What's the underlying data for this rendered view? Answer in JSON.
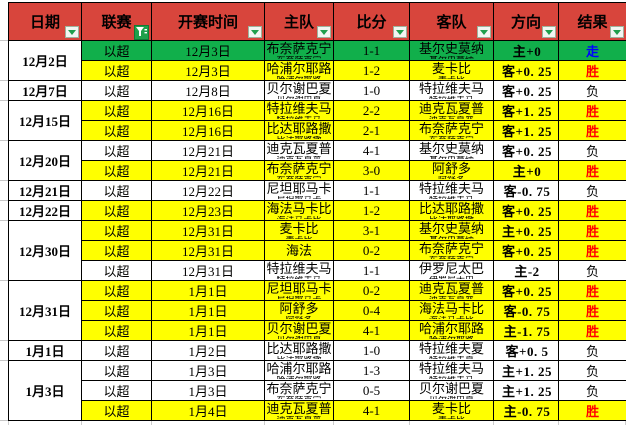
{
  "app": {
    "kind": "spreadsheet-match-table"
  },
  "colors": {
    "header_red": "#d8453c",
    "row_green": "#11af4b",
    "row_yellow": "#ffff00",
    "row_white": "#ffffff",
    "result_win_red": "#ff0000",
    "result_draw_blue": "#0000ff",
    "result_lose_black": "#000000",
    "filter_icon_green": "#1fa04b",
    "grid_black": "#000000"
  },
  "columns": [
    {
      "key": "date",
      "label": "日期",
      "filter": "dropdown"
    },
    {
      "key": "league",
      "label": "联赛",
      "filter": "funnel"
    },
    {
      "key": "time",
      "label": "开赛时间",
      "filter": "dropdown"
    },
    {
      "key": "home",
      "label": "主队",
      "filter": "dropdown"
    },
    {
      "key": "score",
      "label": "比分",
      "filter": "dropdown"
    },
    {
      "key": "away",
      "label": "客队",
      "filter": "dropdown"
    },
    {
      "key": "direction",
      "label": "方向",
      "filter": "dropdown"
    },
    {
      "key": "result",
      "label": "结果",
      "filter": "dropdown"
    }
  ],
  "date_groups": [
    {
      "date": "12月2日",
      "span": 2
    },
    {
      "date": "12月7日",
      "span": 1
    },
    {
      "date": "12月15日",
      "span": 2
    },
    {
      "date": "12月20日",
      "span": 2
    },
    {
      "date": "12月21日",
      "span": 1
    },
    {
      "date": "12月22日",
      "span": 1
    },
    {
      "date": "12月30日",
      "span": 3
    },
    {
      "date": "12月31日",
      "span": 3
    },
    {
      "date": "1月1日",
      "span": 1
    },
    {
      "date": "1月3日",
      "span": 3
    }
  ],
  "rows": [
    {
      "league": "以超",
      "time": "12月3日",
      "home": "布奈萨克宁",
      "score": "1-1",
      "away": "基尔史莫纳",
      "direction": "主+0",
      "result": "走",
      "bg": "green",
      "result_color": "blue"
    },
    {
      "league": "以超",
      "time": "12月3日",
      "home": "哈浦尔耶路",
      "score": "1-2",
      "away": "麦卡比",
      "direction": "客+0. 25",
      "result": "胜",
      "bg": "yellow",
      "result_color": "red"
    },
    {
      "league": "以超",
      "time": "12月8日",
      "home": "贝尔谢巴夏",
      "score": "1-0",
      "away": "特拉维夫马",
      "direction": "客+0. 25",
      "result": "负",
      "bg": "white",
      "result_color": "black"
    },
    {
      "league": "以超",
      "time": "12月16日",
      "home": "特拉维夫马",
      "score": "2-2",
      "away": "迪克瓦夏普",
      "direction": "客+1. 25",
      "result": "胜",
      "bg": "yellow",
      "result_color": "red"
    },
    {
      "league": "以超",
      "time": "12月16日",
      "home": "比达耶路撒",
      "score": "2-1",
      "away": "布奈萨克宁",
      "direction": "客+1. 25",
      "result": "胜",
      "bg": "yellow",
      "result_color": "red"
    },
    {
      "league": "以超",
      "time": "12月21日",
      "home": "迪克瓦夏普",
      "score": "4-1",
      "away": "基尔史莫纳",
      "direction": "客+0. 25",
      "result": "负",
      "bg": "white",
      "result_color": "black"
    },
    {
      "league": "以超",
      "time": "12月21日",
      "home": "布奈萨克宁",
      "score": "3-0",
      "away": "阿舒多",
      "direction": "主+0",
      "result": "胜",
      "bg": "yellow",
      "result_color": "red"
    },
    {
      "league": "以超",
      "time": "12月22日",
      "home": "尼坦耶马卡",
      "score": "1-1",
      "away": "特拉维夫马",
      "direction": "客-0. 75",
      "result": "负",
      "bg": "white",
      "result_color": "black"
    },
    {
      "league": "以超",
      "time": "12月23日",
      "home": "海法马卡比",
      "score": "1-2",
      "away": "比达耶路撒",
      "direction": "客+0. 25",
      "result": "胜",
      "bg": "yellow",
      "result_color": "red"
    },
    {
      "league": "以超",
      "time": "12月31日",
      "home": "麦卡比",
      "score": "3-1",
      "away": "基尔史莫纳",
      "direction": "主+0. 25",
      "result": "胜",
      "bg": "yellow",
      "result_color": "red"
    },
    {
      "league": "以超",
      "time": "12月31日",
      "home": "海法",
      "score": "0-2",
      "away": "布奈萨克宁",
      "direction": "客+0. 25",
      "result": "胜",
      "bg": "yellow",
      "result_color": "red"
    },
    {
      "league": "以超",
      "time": "12月31日",
      "home": "特拉维夫马",
      "score": "1-1",
      "away": "伊罗尼太巴",
      "direction": "主-2",
      "result": "负",
      "bg": "white",
      "result_color": "black"
    },
    {
      "league": "以超",
      "time": "1月1日",
      "home": "尼坦耶马卡",
      "score": "0-2",
      "away": "迪克瓦夏普",
      "direction": "客+0. 25",
      "result": "胜",
      "bg": "yellow",
      "result_color": "red"
    },
    {
      "league": "以超",
      "time": "1月1日",
      "home": "阿舒多",
      "score": "0-4",
      "away": "海法马卡比",
      "direction": "客-0. 75",
      "result": "胜",
      "bg": "yellow",
      "result_color": "red"
    },
    {
      "league": "以超",
      "time": "1月1日",
      "home": "贝尔谢巴夏",
      "score": "4-1",
      "away": "哈浦尔耶路",
      "direction": "主-1. 75",
      "result": "胜",
      "bg": "yellow",
      "result_color": "red"
    },
    {
      "league": "以超",
      "time": "1月2日",
      "home": "比达耶路撒",
      "score": "1-0",
      "away": "特拉维夫夏",
      "direction": "客+0. 5",
      "result": "负",
      "bg": "white",
      "result_color": "black"
    },
    {
      "league": "以超",
      "time": "1月3日",
      "home": "哈浦尔耶路",
      "score": "1-3",
      "away": "特拉维夫马",
      "direction": "主+1. 25",
      "result": "负",
      "bg": "white",
      "result_color": "black"
    },
    {
      "league": "以超",
      "time": "1月3日",
      "home": "布奈萨克宁",
      "score": "0-5",
      "away": "贝尔谢巴夏",
      "direction": "主+1. 25",
      "result": "负",
      "bg": "white",
      "result_color": "black"
    },
    {
      "league": "以超",
      "time": "1月4日",
      "home": "迪克瓦夏普",
      "score": "4-1",
      "away": "麦卡比",
      "direction": "主-0. 75",
      "result": "胜",
      "bg": "yellow",
      "result_color": "red"
    }
  ]
}
